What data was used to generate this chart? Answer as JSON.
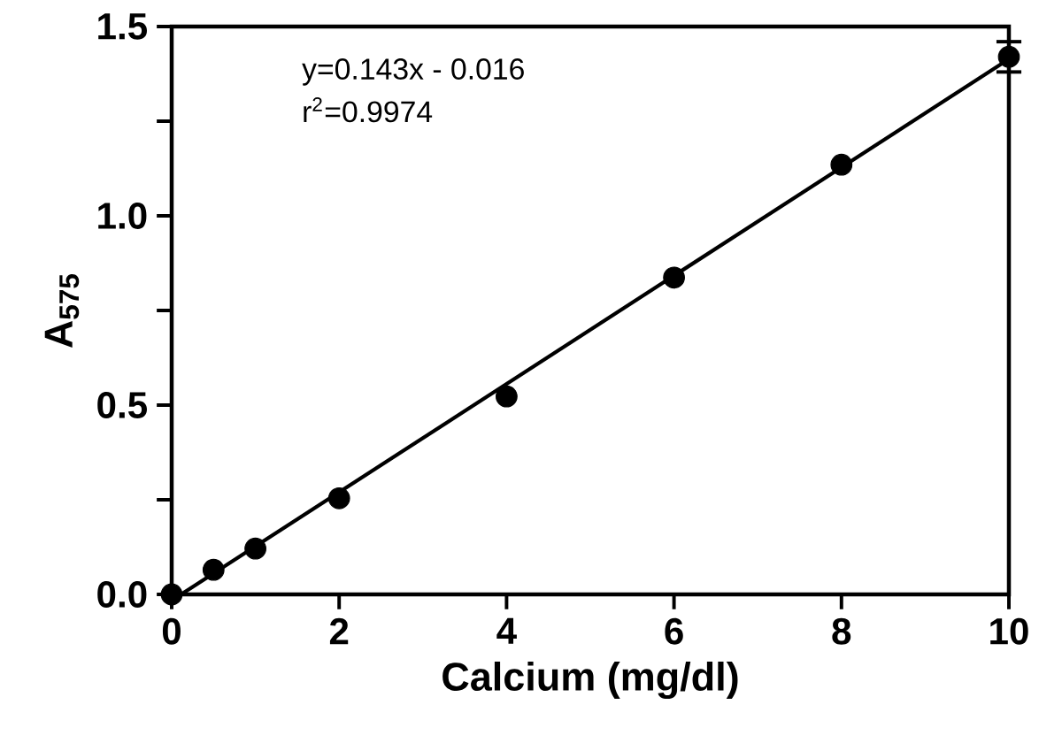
{
  "chart_data": {
    "type": "scatter",
    "xlabel": "Calcium (mg/dl)",
    "ylabel": "A$_{575}$",
    "annotations": [
      "y=0.143x - 0.016",
      "r$^{2}$=0.9974"
    ],
    "xlim": [
      0,
      10
    ],
    "ylim": [
      0,
      1.5
    ],
    "xticks": [
      0,
      2,
      4,
      6,
      8,
      10
    ],
    "yticks": [
      {
        "value": 0,
        "label": "0.0"
      },
      {
        "value": 0.25,
        "label": null
      },
      {
        "value": 0.5,
        "label": "0.5"
      },
      {
        "value": 0.75,
        "label": null
      },
      {
        "value": 1,
        "label": "1.0"
      },
      {
        "value": 1.25,
        "label": null
      },
      {
        "value": 1.5,
        "label": "1.5"
      }
    ],
    "grid": false,
    "marker": "circle",
    "series": [
      {
        "color": "#000000",
        "x": [
          0,
          0.5,
          1,
          2,
          4,
          6,
          8,
          10
        ],
        "values": [
          0,
          0.065,
          0.121,
          0.254,
          0.523,
          0.837,
          1.135,
          1.42
        ],
        "errors": [
          null,
          null,
          null,
          null,
          null,
          null,
          null,
          0.04
        ]
      },
      {
        "type": "line",
        "marker": "none",
        "color": "#000000",
        "x": [
          0.112,
          10
        ],
        "values": [
          0,
          1.414
        ],
        "line_style": "solid"
      }
    ]
  }
}
